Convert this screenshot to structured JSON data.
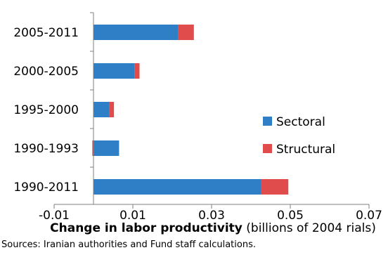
{
  "chart_data": {
    "type": "bar",
    "orientation": "horizontal",
    "stacked": true,
    "categories": [
      "2005-2011",
      "2000-2005",
      "1995-2000",
      "1990-1993",
      "1990-2011"
    ],
    "series": [
      {
        "name": "Sectoral",
        "color": "#2e7fc6",
        "values": [
          0.0215,
          0.0105,
          0.004,
          0.0065,
          0.0425
        ]
      },
      {
        "name": "Structural",
        "color": "#e04b4b",
        "values": [
          0.004,
          0.0012,
          0.0012,
          -0.0003,
          0.007
        ]
      }
    ],
    "xlim": [
      -0.01,
      0.07
    ],
    "xticks": [
      -0.01,
      0.01,
      0.03,
      0.05,
      0.07
    ],
    "xtick_labels": [
      "-0.01",
      "0.01",
      "0.03",
      "0.05",
      "0.07"
    ],
    "xlabel_bold": "Change in labor productivity",
    "xlabel_rest": " (billions of 2004 rials)",
    "legend_position": "right",
    "grid": false
  },
  "source_note": "Sources: Iranian authorities and Fund staff calculations."
}
